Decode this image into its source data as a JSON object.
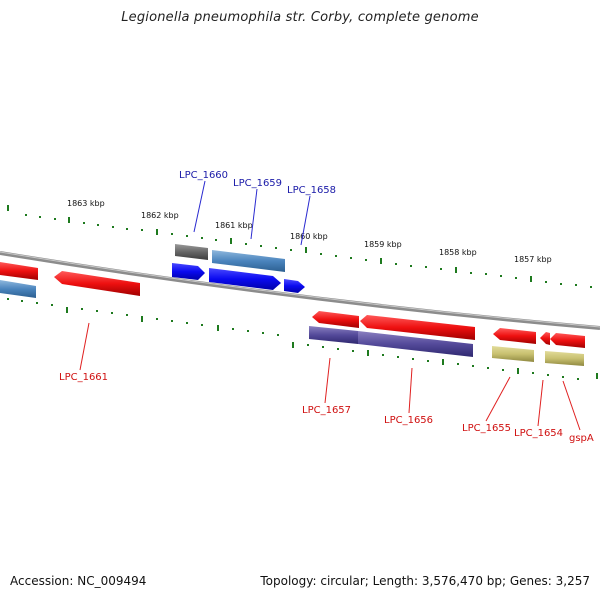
{
  "title": "Legionella pneumophila str. Corby, complete genome",
  "accession": "Accession: NC_009494",
  "summary": "Topology: circular; Length: 3,576,470 bp; Genes: 3,257",
  "colors": {
    "backbone": "#8c8c8c",
    "tick": "#1e7a1e",
    "blue_label": "#1a1aa8",
    "red_label": "#d01010"
  },
  "kbp_labels": [
    "1863 kbp",
    "1862 kbp",
    "1861 kbp",
    "1860 kbp",
    "1859 kbp",
    "1858 kbp",
    "1857 kbp"
  ],
  "gene_labels": {
    "lpc_1660": "LPC_1660",
    "lpc_1659": "LPC_1659",
    "lpc_1658": "LPC_1658",
    "lpc_1661": "LPC_1661",
    "lpc_1657": "LPC_1657",
    "lpc_1656": "LPC_1656",
    "lpc_1655": "LPC_1655",
    "lpc_1654": "LPC_1654",
    "gspa": "gspA"
  }
}
